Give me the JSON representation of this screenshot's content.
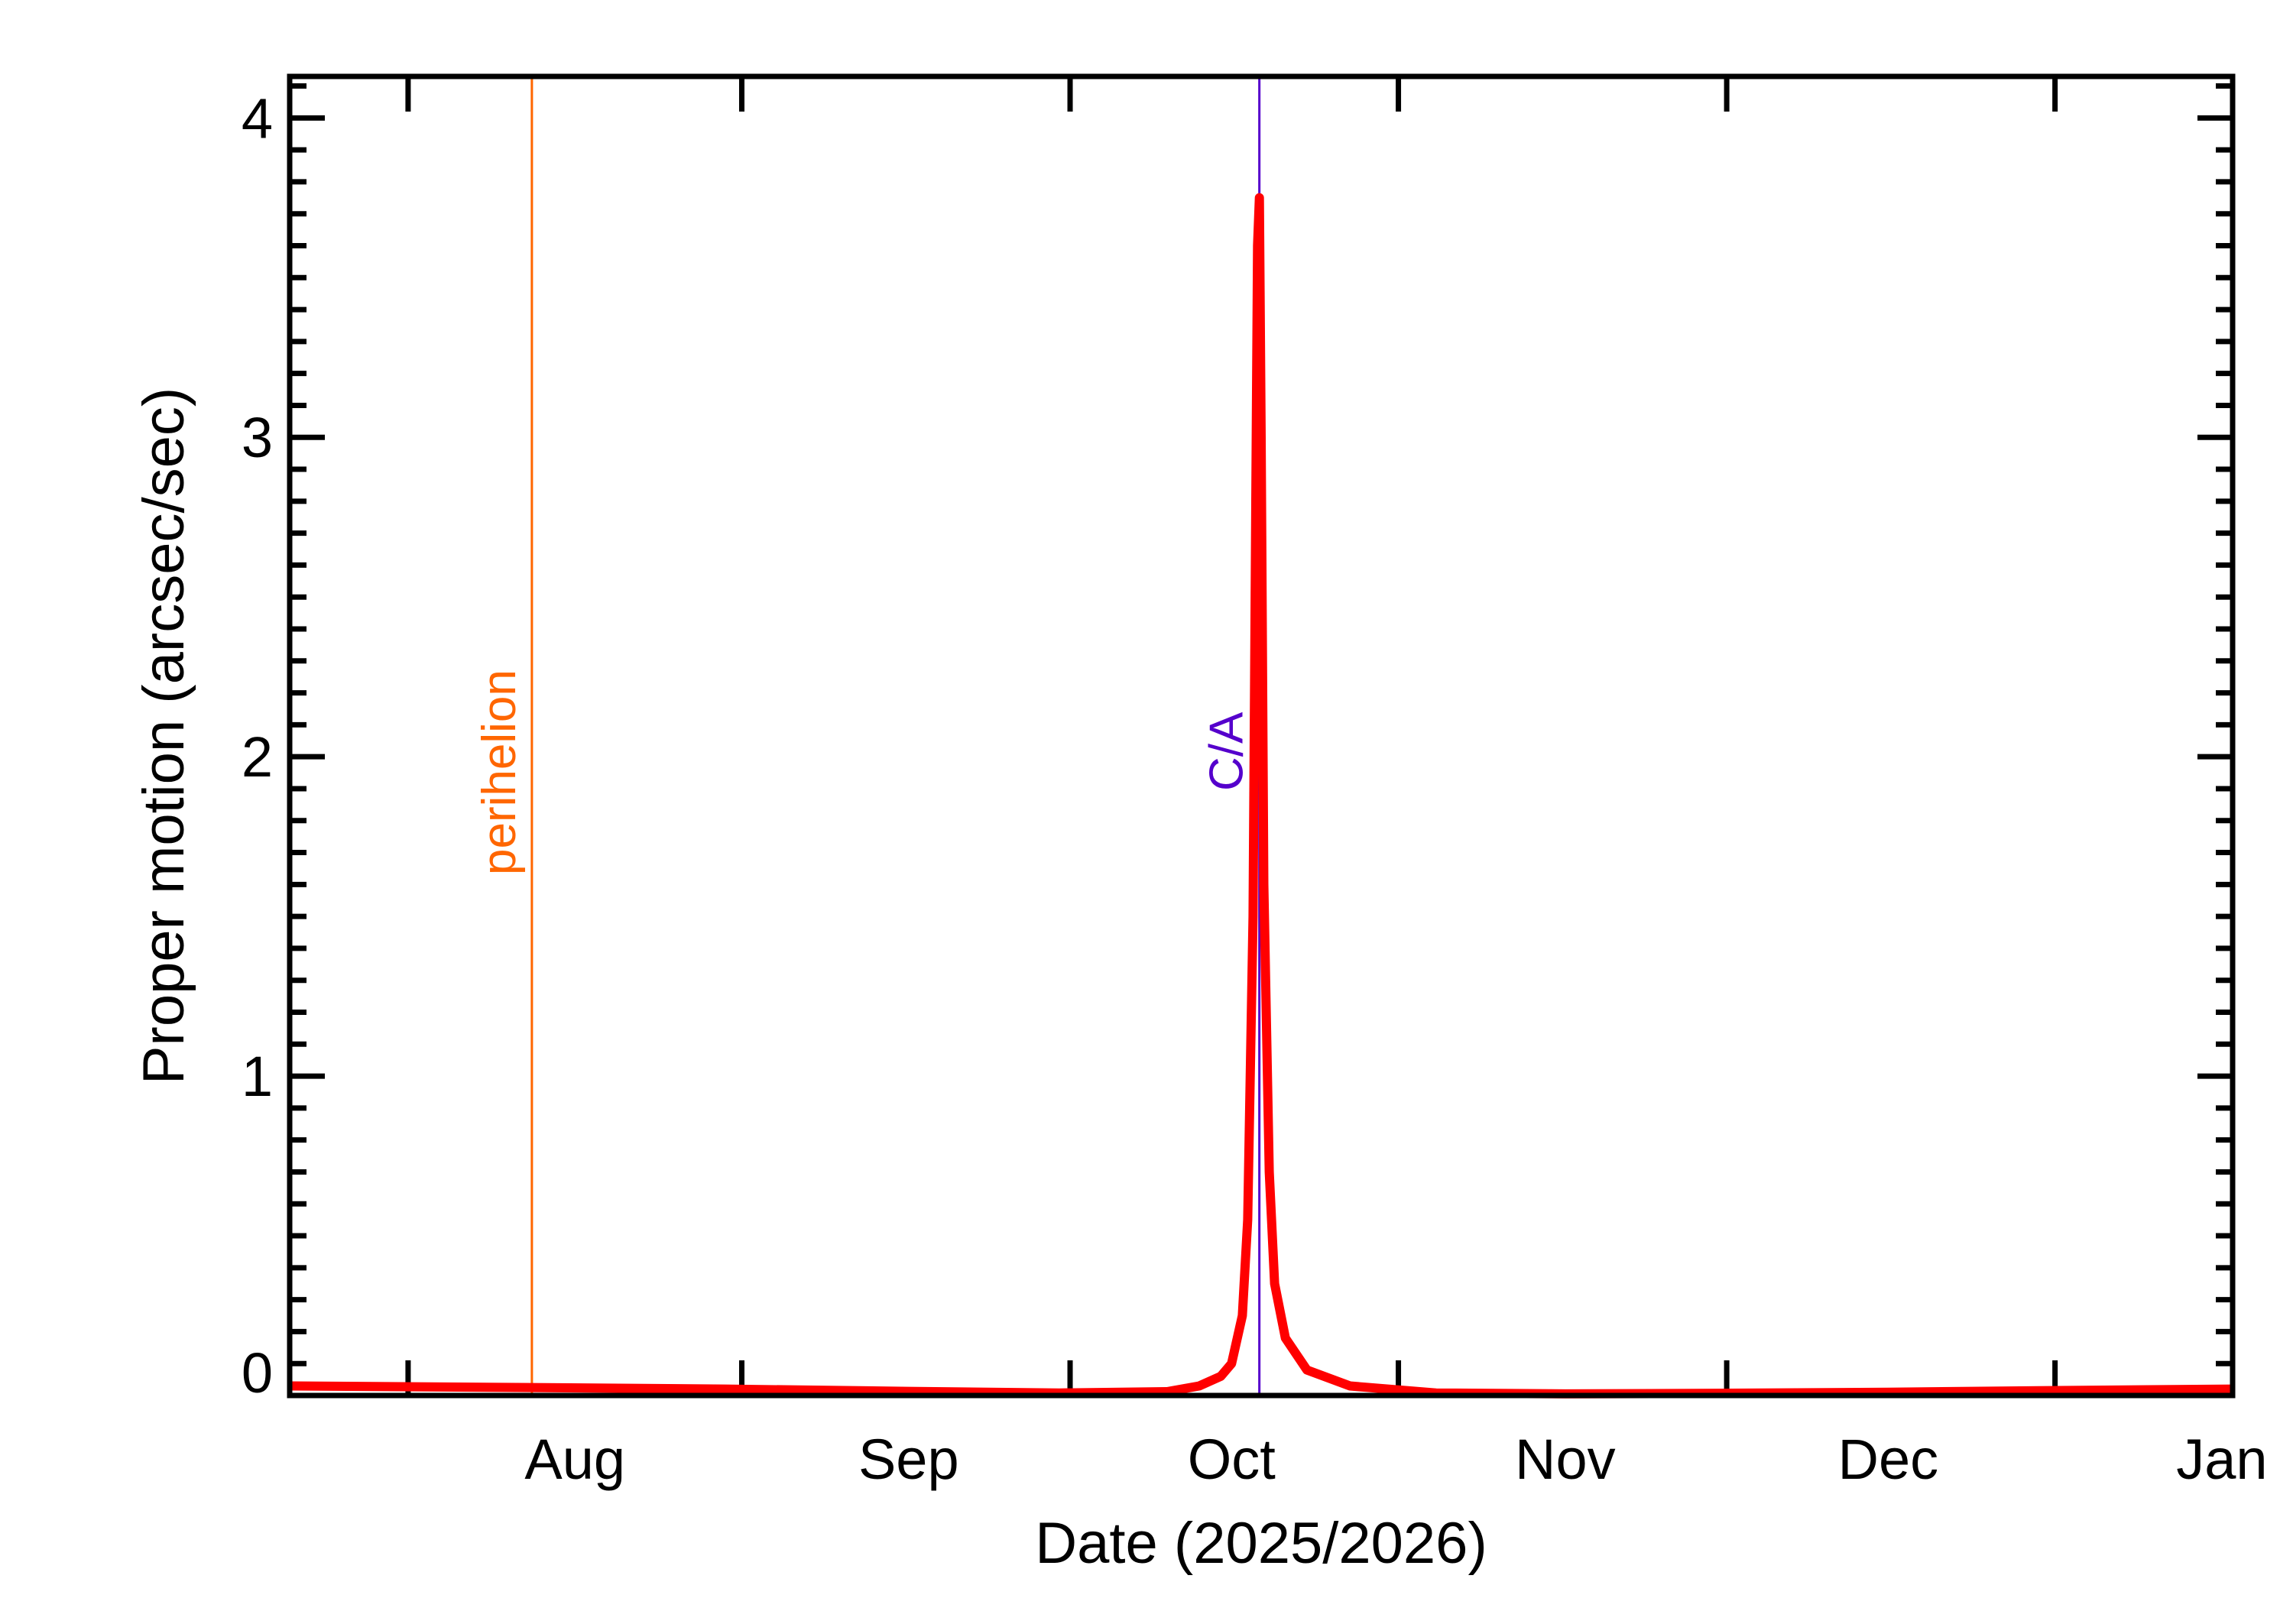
{
  "chart_data": {
    "type": "line",
    "title": "",
    "xlabel": "Date (2025/2026)",
    "ylabel": "Proper motion (arcsec/sec)",
    "xlim": [
      "2025-07-05T12:00",
      "2026-01-02T00:00"
    ],
    "ylim": [
      0,
      4.13
    ],
    "grid": false,
    "x_tick_labels": [
      {
        "label": "Aug",
        "date": "2025-08-01"
      },
      {
        "label": "Sep",
        "date": "2025-09-01"
      },
      {
        "label": "Oct",
        "date": "2025-10-01"
      },
      {
        "label": "Nov",
        "date": "2025-11-01"
      },
      {
        "label": "Dec",
        "date": "2025-12-01"
      },
      {
        "label": "Jan",
        "date": "2026-01-01"
      }
    ],
    "y_ticks": [
      0,
      1,
      2,
      3,
      4
    ],
    "y_tick_labels": [
      "0",
      "1",
      "2",
      "3",
      "4"
    ],
    "y_minor_step": 0.1,
    "series": [
      {
        "color": "#ff0000",
        "x": [
          "2025-07-05T12:00",
          "2025-07-28",
          "2025-08-15",
          "2025-09-01",
          "2025-09-15",
          "2025-09-25",
          "2025-09-28",
          "2025-09-30",
          "2025-10-01",
          "2025-10-02",
          "2025-10-02T12:00",
          "2025-10-03T00:00",
          "2025-10-03T06:00",
          "2025-10-03T10:00",
          "2025-10-03T14:00",
          "2025-10-03T18:00",
          "2025-10-04T00:00",
          "2025-10-04T12:00",
          "2025-10-05",
          "2025-10-06",
          "2025-10-08",
          "2025-10-12",
          "2025-10-20",
          "2025-11-01",
          "2025-11-15",
          "2025-12-01",
          "2025-12-15",
          "2026-01-02T00:00"
        ],
        "y": [
          0.03,
          0.025,
          0.02,
          0.013,
          0.008,
          0.012,
          0.03,
          0.06,
          0.1,
          0.25,
          0.55,
          1.5,
          2.8,
          3.6,
          3.75,
          3.0,
          1.6,
          0.7,
          0.35,
          0.18,
          0.08,
          0.03,
          0.008,
          0.005,
          0.007,
          0.01,
          0.015,
          0.02
        ]
      }
    ],
    "annotations": [
      {
        "label": "perihelion",
        "date": "2025-07-28",
        "color": "#ff6600"
      },
      {
        "label": "C/A",
        "date": "2025-10-03T14:00",
        "color": "#5500cc"
      }
    ]
  }
}
